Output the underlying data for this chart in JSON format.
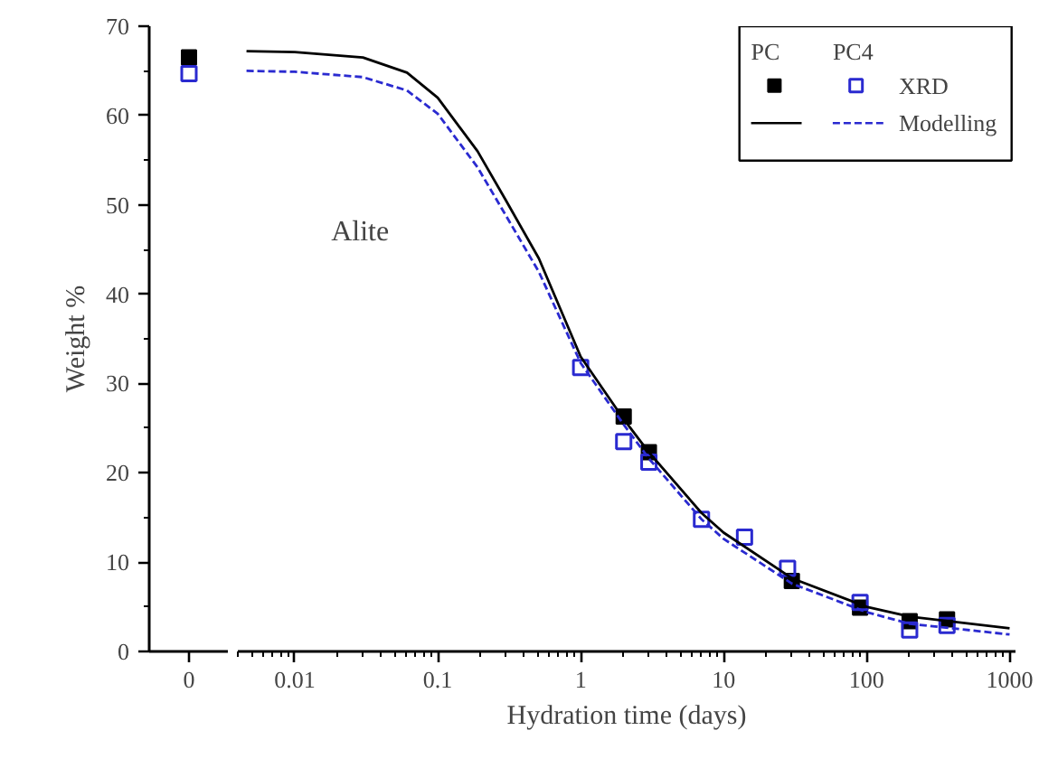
{
  "chart_data": [
    {
      "type": "scatter",
      "categories": [
        "0"
      ],
      "ylabel": "Weight %",
      "ylim": [
        0,
        70
      ],
      "yticks": [
        0,
        10,
        20,
        30,
        40,
        50,
        60,
        70
      ],
      "marker": "square",
      "grid": false,
      "series": [
        {
          "color": "#000000",
          "values": [
            66.5
          ]
        },
        {
          "color": "#2a2ad0",
          "values": [
            64.7
          ]
        }
      ]
    },
    {
      "type": "scatter",
      "xlabel": "Hydration time (days)",
      "log": "x",
      "xlim": [
        0.004,
        1100
      ],
      "xticks": [
        0.01,
        0.1,
        1,
        10,
        100,
        1000
      ],
      "ylim": [
        0,
        70
      ],
      "tick_labels": "x",
      "grid": false,
      "legend": "top right",
      "annotations": [
        "Alite",
        "PC",
        "PC4"
      ],
      "series": [
        {
          "marker": "square",
          "color": "#000000",
          "x": [
            2,
            3,
            30,
            90,
            200,
            365
          ],
          "values": [
            26.3,
            22.3,
            7.9,
            4.9,
            3.4,
            3.6
          ]
        },
        {
          "name": "XRD",
          "marker": "square",
          "color": "#2a2ad0",
          "x": [
            1,
            2,
            3,
            7,
            14,
            28,
            90,
            200,
            365
          ],
          "values": [
            31.8,
            23.5,
            21.2,
            14.8,
            12.8,
            9.3,
            5.5,
            2.4,
            2.9
          ]
        },
        {
          "type": "line",
          "line_style": "solid",
          "color": "#000000",
          "x": [
            0.0046,
            0.01,
            0.03,
            0.061,
            0.1,
            0.19,
            0.3,
            0.51,
            1,
            2,
            3,
            7,
            10,
            30,
            100,
            200,
            1000
          ],
          "values": [
            67.2,
            67.1,
            66.5,
            64.8,
            62.0,
            56.0,
            50.5,
            44.0,
            33.0,
            26.0,
            22.3,
            15.5,
            13.3,
            8.2,
            5.0,
            3.9,
            2.6
          ]
        },
        {
          "name": "Modelling",
          "type": "line",
          "line_style": "dashed",
          "color": "#2a2ad0",
          "x": [
            0.0046,
            0.01,
            0.03,
            0.061,
            0.1,
            0.19,
            0.3,
            0.51,
            1,
            2,
            3,
            7,
            10,
            30,
            100,
            200,
            1000
          ],
          "values": [
            65.0,
            64.9,
            64.3,
            62.8,
            60.2,
            54.2,
            48.8,
            42.5,
            32.3,
            25.4,
            21.6,
            14.8,
            12.6,
            7.6,
            4.4,
            3.1,
            1.9
          ]
        }
      ]
    }
  ]
}
